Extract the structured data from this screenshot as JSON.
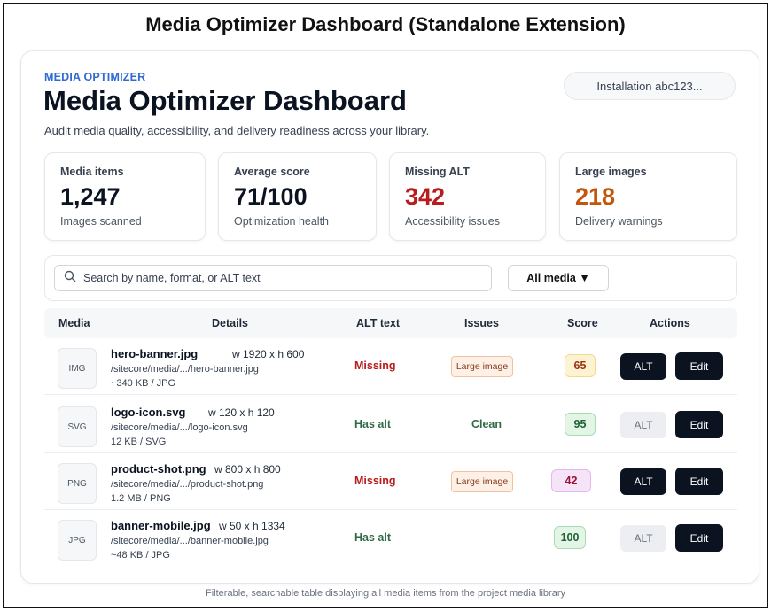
{
  "frame_title": "Media Optimizer Dashboard (Standalone Extension)",
  "header": {
    "eyebrow": "MEDIA OPTIMIZER",
    "title": "Media Optimizer Dashboard",
    "subtitle": "Audit media quality, accessibility, and delivery readiness across your library.",
    "installation": "Installation abc123..."
  },
  "stats": [
    {
      "label": "Media items",
      "value": "1,247",
      "sub": "Images scanned",
      "color": "#0b1220"
    },
    {
      "label": "Average score",
      "value": "71/100",
      "sub": "Optimization health",
      "color": "#0b1220"
    },
    {
      "label": "Missing ALT",
      "value": "342",
      "sub": "Accessibility issues",
      "color": "#b91c1c"
    },
    {
      "label": "Large images",
      "value": "218",
      "sub": "Delivery warnings",
      "color": "#c2570c"
    }
  ],
  "search": {
    "placeholder": "Search by name, format, or ALT text",
    "icon": "search-icon"
  },
  "filter": {
    "label": "All media ▼"
  },
  "table": {
    "columns": [
      "Media",
      "Details",
      "ALT text",
      "Issues",
      "Score",
      "Actions"
    ],
    "rows": [
      {
        "thumb": "IMG",
        "name": "hero-banner.jpg",
        "dims": "w 1920 x h 600",
        "path": "/sitecore/media/.../hero-banner.jpg",
        "meta": "~340 KB / JPG",
        "alt": "Missing",
        "issue": "Large image",
        "score": "65",
        "alt_button": "ALT",
        "edit_button": "Edit"
      },
      {
        "thumb": "SVG",
        "name": "logo-icon.svg",
        "dims": "w 120 x h 120",
        "path": "/sitecore/media/.../logo-icon.svg",
        "meta": "12 KB / SVG",
        "alt": "Has alt",
        "issue": "Clean",
        "score": "95",
        "alt_button": "ALT",
        "edit_button": "Edit"
      },
      {
        "thumb": "PNG",
        "name": "product-shot.png",
        "dims": "w 800 x h 800",
        "path": "/sitecore/media/.../product-shot.png",
        "meta": "1.2 MB / PNG",
        "alt": "Missing",
        "issue": "Large image",
        "score": "42",
        "alt_button": "ALT",
        "edit_button": "Edit"
      },
      {
        "thumb": "JPG",
        "name": "banner-mobile.jpg",
        "dims": "w 50 x h 1334",
        "path": "/sitecore/media/.../banner-mobile.jpg",
        "meta": "~48 KB / JPG",
        "alt": "Has alt",
        "issue": "",
        "score": "100",
        "alt_button": "ALT",
        "edit_button": "Edit"
      }
    ]
  },
  "score_colors": {
    "65": {
      "bg": "#fdf3d3",
      "border": "#f5d98a",
      "text": "#9a3412"
    },
    "95": {
      "bg": "#e3f6e6",
      "border": "#a7dcb3",
      "text": "#1f5f36"
    },
    "42": {
      "bg": "#f5e3f7",
      "border": "#e3b8ea",
      "text": "#9f1239"
    },
    "100": {
      "bg": "#e3f6e6",
      "border": "#a7dcb3",
      "text": "#1f5f36"
    }
  },
  "caption": "Filterable, searchable table displaying all media items from the project media library"
}
